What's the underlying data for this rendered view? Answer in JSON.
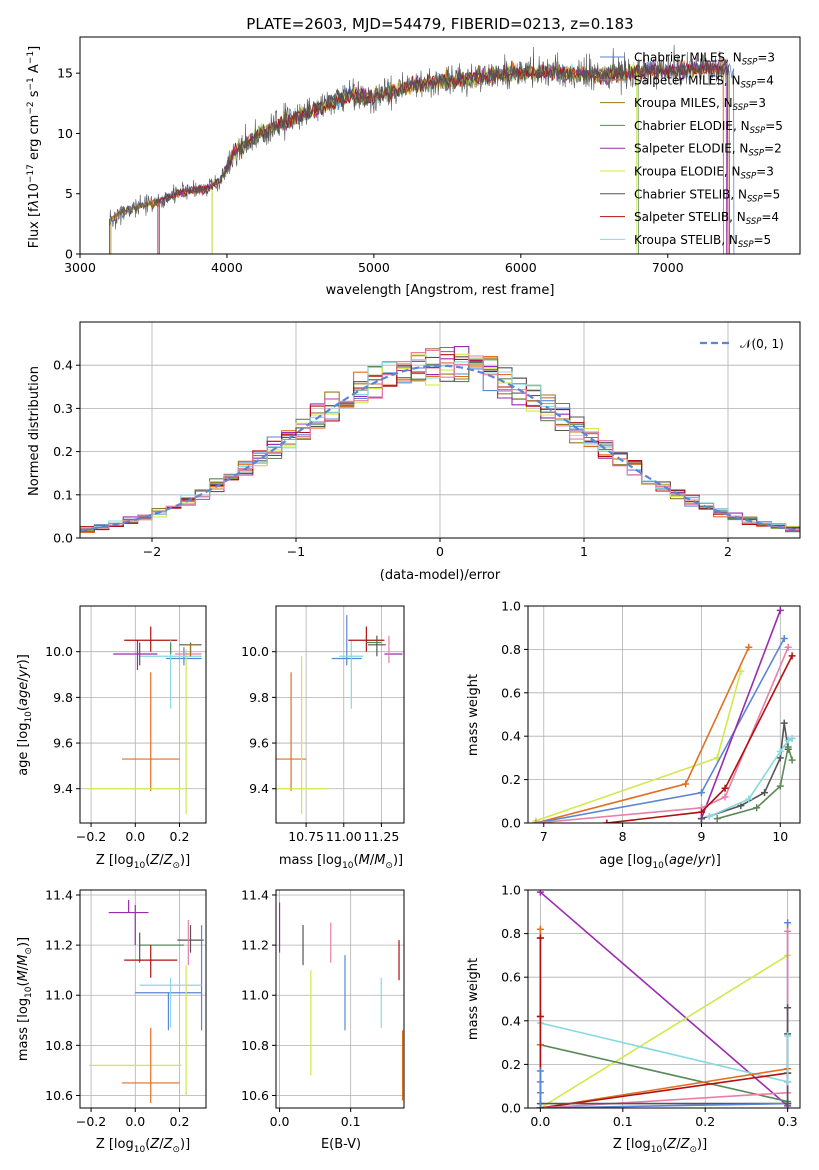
{
  "figure": {
    "title": "PLATE=2603, MJD=54479, FIBERID=0213, z=0.183"
  },
  "colors": {
    "chabrier_miles": "#5b86d6",
    "salpeter_miles": "#e07020",
    "kroupa_miles": "#9a7a20",
    "chabrier_elodie": "#5a8a5a",
    "salpeter_elodie": "#9b2ab0",
    "kroupa_elodie": "#d2e84a",
    "chabrier_stelib": "#555555",
    "salpeter_stelib": "#b01010",
    "kroupa_stelib": "#88d8e0",
    "pink": "#e87fa8",
    "gauss": "#5b86d6"
  },
  "chart_data": [
    {
      "id": "spectrum",
      "type": "line",
      "xlabel": "wavelength [Angstrom, rest frame]",
      "ylabel": "Flux [f_λ 10^-17 erg cm^-2 s^-1 A^-1]",
      "xlim": [
        3000,
        7900
      ],
      "ylim": [
        0,
        18
      ],
      "xticks": [
        "3000",
        "4000",
        "5000",
        "6000",
        "7000"
      ],
      "yticks": [
        "0",
        "5",
        "10",
        "15"
      ],
      "legend_position": "right",
      "legend": [
        {
          "imf": "Chabrier MILES",
          "n": "3",
          "color": "chabrier_miles"
        },
        {
          "imf": "Salpeter MILES",
          "n": "4",
          "color": "salpeter_miles"
        },
        {
          "imf": "Kroupa MILES",
          "n": "3",
          "color": "kroupa_miles"
        },
        {
          "imf": "Chabrier ELODIE",
          "n": "5",
          "color": "chabrier_elodie"
        },
        {
          "imf": "Salpeter ELODIE",
          "n": "2",
          "color": "salpeter_elodie"
        },
        {
          "imf": "Kroupa ELODIE",
          "n": "3",
          "color": "kroupa_elodie"
        },
        {
          "imf": "Chabrier STELIB",
          "n": "5",
          "color": "chabrier_stelib"
        },
        {
          "imf": "Salpeter STELIB",
          "n": "4",
          "color": "salpeter_stelib"
        },
        {
          "imf": "Kroupa STELIB",
          "n": "5",
          "color": "kroupa_stelib"
        }
      ],
      "continuum": [
        [
          3200,
          2.8
        ],
        [
          3350,
          3.8
        ],
        [
          3500,
          4.2
        ],
        [
          3700,
          5.2
        ],
        [
          3850,
          5.4
        ],
        [
          3950,
          6.0
        ],
        [
          4050,
          8.5
        ],
        [
          4200,
          9.8
        ],
        [
          4400,
          11.0
        ],
        [
          4600,
          12.0
        ],
        [
          4850,
          13.2
        ],
        [
          5000,
          13.0
        ],
        [
          5200,
          13.8
        ],
        [
          5400,
          14.2
        ],
        [
          5700,
          14.6
        ],
        [
          5900,
          15.0
        ],
        [
          6200,
          15.1
        ],
        [
          6500,
          14.8
        ],
        [
          6900,
          15.2
        ],
        [
          7300,
          15.4
        ],
        [
          7450,
          15.3
        ]
      ],
      "starts": [
        3200,
        3200,
        3210,
        3900,
        3540,
        3900,
        3200,
        3530,
        3540
      ],
      "stops": [
        7450,
        7380,
        7420,
        6800,
        7400,
        6790,
        7420,
        7410,
        7380
      ]
    },
    {
      "id": "residual_hist",
      "type": "line",
      "xlabel": "(data-model)/error",
      "ylabel": "Normed distribution",
      "xlim": [
        -2.5,
        2.5
      ],
      "ylim": [
        0,
        0.5
      ],
      "xticks": [
        "-2",
        "-1",
        "0",
        "1",
        "2"
      ],
      "yticks": [
        "0.0",
        "0.1",
        "0.2",
        "0.3",
        "0.4"
      ],
      "legend_position": "top-right",
      "gauss_label": "𝒩(0, 1)",
      "bin_width": 0.1
    },
    {
      "id": "z_age",
      "type": "scatter",
      "xlabel": "Z [log10(Z/Z☉)]",
      "ylabel": "age [log10(age/yr)]",
      "xlim": [
        -0.25,
        0.32
      ],
      "ylim": [
        9.25,
        10.2
      ],
      "xticks": [
        "-0.2",
        "0.0",
        "0.2"
      ],
      "yticks": [
        "9.4",
        "9.6",
        "9.8",
        "10.0"
      ],
      "points": [
        {
          "color": "chabrier_miles",
          "x": 0.22,
          "xerr": 0.08,
          "y": 9.97,
          "yerr": 0.03,
          "yerr_hi": 0.05
        },
        {
          "color": "salpeter_miles",
          "x": 0.07,
          "xerr": 0.13,
          "y": 9.53,
          "yerr": 0.14,
          "yerr_hi": 0.38
        },
        {
          "color": "kroupa_elodie",
          "x": 0.0,
          "xerr": 0.22,
          "y": 9.4,
          "yerr": 0.0,
          "yerr_hi": 0.0
        },
        {
          "color": "kroupa_elodie",
          "x": 0.23,
          "xerr": 0.0,
          "y": 9.61,
          "yerr": 0.32,
          "yerr_hi": 0.4
        },
        {
          "color": "salpeter_elodie",
          "x": 0.0,
          "xerr": 0.1,
          "y": 9.99,
          "yerr": 0.0,
          "yerr_hi": 0.0
        },
        {
          "color": "salpeter_elodie",
          "x": 0.01,
          "xerr": 0.0,
          "y": 10.0,
          "yerr": 0.08,
          "yerr_hi": 0.05
        },
        {
          "color": "chabrier_stelib",
          "x": 0.25,
          "xerr": 0.05,
          "y": 10.03,
          "yerr": 0.05,
          "yerr_hi": 0.01
        },
        {
          "color": "salpeter_stelib",
          "x": 0.07,
          "xerr": 0.12,
          "y": 10.05,
          "yerr": 0.05,
          "yerr_hi": 0.06
        },
        {
          "color": "kroupa_stelib",
          "x": 0.16,
          "xerr": 0.14,
          "y": 9.98,
          "yerr": 0.23,
          "yerr_hi": 0.07
        },
        {
          "color": "chabrier_elodie",
          "x": 0.16,
          "xerr": 0.0,
          "y": 10.04,
          "yerr": 0.05,
          "yerr_hi": 0.0
        },
        {
          "color": "chabrier_stelib",
          "x": 0.02,
          "xerr": 0.0,
          "y": 9.99,
          "yerr": 0.05,
          "yerr_hi": 0.05
        },
        {
          "color": "pink",
          "x": 0.24,
          "xerr": 0.06,
          "y": 9.99,
          "yerr": 0.0,
          "yerr_hi": 0.0
        },
        {
          "color": "kroupa_miles",
          "x": 0.25,
          "xerr": 0.03,
          "y": 10.03,
          "yerr": 0.05,
          "yerr_hi": 0.0
        }
      ]
    },
    {
      "id": "mass_age",
      "type": "scatter",
      "xlabel": "mass [log10(M/M☉)]",
      "ylabel": "",
      "xlim": [
        10.55,
        11.4
      ],
      "ylim": [
        9.25,
        10.2
      ],
      "xticks": [
        "10.75",
        "11.00",
        "11.25"
      ],
      "yticks": [
        "9.4",
        "9.6",
        "9.8",
        "10.0"
      ],
      "points": [
        {
          "color": "salpeter_miles",
          "x": 10.65,
          "xerr": 0.1,
          "y": 9.53,
          "yerr": 0.14,
          "yerr_hi": 0.38
        },
        {
          "color": "kroupa_elodie",
          "x": 10.72,
          "xerr": 0.17,
          "y": 9.4,
          "yerr": 0.11,
          "yerr_hi": 0.58
        },
        {
          "color": "chabrier_miles",
          "x": 11.02,
          "xerr": 0.1,
          "y": 9.97,
          "yerr": 0.03,
          "yerr_hi": 0.19
        },
        {
          "color": "kroupa_stelib",
          "x": 11.05,
          "xerr": 0.08,
          "y": 9.98,
          "yerr": 0.23,
          "yerr_hi": 0.07
        },
        {
          "color": "salpeter_stelib",
          "x": 11.15,
          "xerr": 0.12,
          "y": 10.05,
          "yerr": 0.05,
          "yerr_hi": 0.06
        },
        {
          "color": "chabrier_stelib",
          "x": 11.22,
          "xerr": 0.06,
          "y": 10.03,
          "yerr": 0.05,
          "yerr_hi": 0.04
        },
        {
          "color": "salpeter_elodie",
          "x": 11.33,
          "xerr": 0.06,
          "y": 9.99,
          "yerr": 0.0,
          "yerr_hi": 0.0
        },
        {
          "color": "pink",
          "x": 11.3,
          "xerr": 0.0,
          "y": 10.0,
          "yerr": 0.05,
          "yerr_hi": 0.07
        },
        {
          "color": "chabrier_elodie",
          "x": 11.2,
          "xerr": 0.05,
          "y": 10.04,
          "yerr": 0.0,
          "yerr_hi": 0.0
        }
      ]
    },
    {
      "id": "age_mass_weight",
      "type": "line",
      "xlabel": "age [log10(age/yr)]",
      "ylabel": "mass weight",
      "xlim": [
        6.8,
        10.25
      ],
      "ylim": [
        0,
        1.0
      ],
      "xticks": [
        "7",
        "8",
        "9",
        "10"
      ],
      "yticks": [
        "0.0",
        "0.2",
        "0.4",
        "0.6",
        "0.8",
        "1.0"
      ],
      "series": [
        {
          "color": "kroupa_elodie",
          "x": [
            6.9,
            9.2,
            9.5
          ],
          "y": [
            0.01,
            0.3,
            0.7
          ]
        },
        {
          "color": "salpeter_miles",
          "x": [
            6.9,
            8.8,
            9.6
          ],
          "y": [
            0.0,
            0.18,
            0.81
          ]
        },
        {
          "color": "chabrier_miles",
          "x": [
            6.9,
            9.0,
            10.05
          ],
          "y": [
            0.0,
            0.14,
            0.85
          ]
        },
        {
          "color": "salpeter_elodie",
          "x": [
            9.0,
            10.0
          ],
          "y": [
            0.02,
            0.98
          ]
        },
        {
          "color": "pink",
          "x": [
            6.9,
            9.0,
            9.3,
            10.1
          ],
          "y": [
            0.0,
            0.07,
            0.12,
            0.81
          ]
        },
        {
          "color": "salpeter_stelib",
          "x": [
            7.8,
            9.0,
            9.3,
            10.15
          ],
          "y": [
            0.0,
            0.05,
            0.16,
            0.77
          ]
        },
        {
          "color": "chabrier_stelib",
          "x": [
            9.0,
            9.5,
            9.8,
            10.0,
            10.05,
            10.1
          ],
          "y": [
            0.02,
            0.08,
            0.14,
            0.3,
            0.46,
            0.34
          ]
        },
        {
          "color": "kroupa_stelib",
          "x": [
            9.1,
            9.6,
            10.0,
            10.1,
            10.15
          ],
          "y": [
            0.03,
            0.11,
            0.33,
            0.38,
            0.39
          ]
        },
        {
          "color": "chabrier_elodie",
          "x": [
            9.2,
            9.7,
            10.0,
            10.1,
            10.15
          ],
          "y": [
            0.02,
            0.07,
            0.17,
            0.35,
            0.29
          ]
        }
      ]
    },
    {
      "id": "z_mass",
      "type": "scatter",
      "xlabel": "Z [log10(Z/Z☉)]",
      "ylabel": "mass [log10(M/M☉)]",
      "xlim": [
        -0.25,
        0.32
      ],
      "ylim": [
        10.55,
        11.42
      ],
      "xticks": [
        "-0.2",
        "0.0",
        "0.2"
      ],
      "yticks": [
        "10.6",
        "10.8",
        "11.0",
        "11.2",
        "11.4"
      ],
      "points": [
        {
          "color": "salpeter_elodie",
          "x": -0.03,
          "xerr": 0.09,
          "y": 11.33,
          "yerr": 0.0,
          "yerr_hi": 0.05
        },
        {
          "color": "salpeter_elodie",
          "x": 0.0,
          "xerr": 0.0,
          "y": 11.3,
          "yerr": 0.1,
          "yerr_hi": 0.06
        },
        {
          "color": "chabrier_elodie",
          "x": 0.12,
          "xerr": 0.1,
          "y": 11.2,
          "yerr": 0.0,
          "yerr_hi": 0.0
        },
        {
          "color": "chabrier_stelib",
          "x": 0.02,
          "xerr": 0.0,
          "y": 11.2,
          "yerr": 0.07,
          "yerr_hi": 0.05
        },
        {
          "color": "chabrier_stelib",
          "x": 0.25,
          "xerr": 0.06,
          "y": 11.22,
          "yerr": 0.05,
          "yerr_hi": 0.06
        },
        {
          "color": "salpeter_stelib",
          "x": 0.07,
          "xerr": 0.12,
          "y": 11.14,
          "yerr": 0.07,
          "yerr_hi": 0.06
        },
        {
          "color": "pink",
          "x": 0.24,
          "xerr": 0.0,
          "y": 11.2,
          "yerr": 0.08,
          "yerr_hi": 0.1
        },
        {
          "color": "chabrier_miles",
          "x": 0.15,
          "xerr": 0.15,
          "y": 11.01,
          "yerr": 0.15,
          "yerr_hi": 0.0
        },
        {
          "color": "chabrier_miles",
          "x": 0.3,
          "xerr": 0.0,
          "y": 11.06,
          "yerr": 0.2,
          "yerr_hi": 0.22
        },
        {
          "color": "kroupa_stelib",
          "x": 0.16,
          "xerr": 0.14,
          "y": 11.04,
          "yerr": 0.17,
          "yerr_hi": 0.03
        },
        {
          "color": "kroupa_elodie",
          "x": 0.23,
          "xerr": 0.0,
          "y": 10.9,
          "yerr": 0.3,
          "yerr_hi": 0.22
        },
        {
          "color": "kroupa_elodie",
          "x": 0.0,
          "xerr": 0.21,
          "y": 10.72,
          "yerr": 0.0,
          "yerr_hi": 0.0
        },
        {
          "color": "salpeter_miles",
          "x": 0.07,
          "xerr": 0.13,
          "y": 10.65,
          "yerr": 0.08,
          "yerr_hi": 0.22
        }
      ]
    },
    {
      "id": "ebv_mass",
      "type": "scatter",
      "xlabel": "E(B-V)",
      "ylabel": "",
      "xlim": [
        -0.005,
        0.175
      ],
      "ylim": [
        10.55,
        11.42
      ],
      "xticks": [
        "0.0",
        "0.1"
      ],
      "yticks": [
        "10.6",
        "10.8",
        "11.0",
        "11.2",
        "11.4"
      ],
      "points": [
        {
          "color": "salpeter_elodie",
          "x": 0.0,
          "y": 11.27,
          "yerr": 0.1
        },
        {
          "color": "chabrier_stelib",
          "x": 0.033,
          "y": 11.2,
          "yerr": 0.08
        },
        {
          "color": "pink",
          "x": 0.072,
          "y": 11.21,
          "yerr": 0.08
        },
        {
          "color": "chabrier_miles",
          "x": 0.092,
          "y": 11.01,
          "yerr": 0.15
        },
        {
          "color": "kroupa_elodie",
          "x": 0.044,
          "y": 10.89,
          "yerr": 0.21
        },
        {
          "color": "kroupa_stelib",
          "x": 0.143,
          "y": 10.97,
          "yerr": 0.1
        },
        {
          "color": "salpeter_stelib",
          "x": 0.168,
          "y": 11.14,
          "yerr": 0.08
        },
        {
          "color": "salpeter_miles",
          "x": 0.173,
          "y": 10.72,
          "yerr": 0.14
        }
      ]
    },
    {
      "id": "z_mass_weight",
      "type": "line",
      "xlabel": "Z [log10(Z/Z☉)]",
      "ylabel": "mass weight",
      "xlim": [
        -0.015,
        0.315
      ],
      "ylim": [
        0,
        1.0
      ],
      "xticks": [
        "0.0",
        "0.1",
        "0.2",
        "0.3"
      ],
      "yticks": [
        "0.0",
        "0.2",
        "0.4",
        "0.6",
        "0.8",
        "1.0"
      ],
      "series": [
        {
          "color": "salpeter_elodie",
          "x": [
            0.0,
            0.3
          ],
          "y": [
            0.99,
            0.01
          ]
        },
        {
          "color": "kroupa_elodie",
          "x": [
            0.0,
            0.3
          ],
          "y": [
            0.0,
            0.7
          ]
        },
        {
          "color": "kroupa_stelib",
          "x": [
            0.0,
            0.3
          ],
          "y": [
            0.39,
            0.12
          ]
        },
        {
          "color": "chabrier_elodie",
          "x": [
            0.0,
            0.3
          ],
          "y": [
            0.29,
            0.03
          ]
        },
        {
          "color": "salpeter_miles",
          "x": [
            0.0,
            0.3
          ],
          "y": [
            0.0,
            0.18
          ]
        },
        {
          "color": "salpeter_stelib",
          "x": [
            0.0,
            0.3
          ],
          "y": [
            0.0,
            0.16
          ]
        },
        {
          "color": "pink",
          "x": [
            0.0,
            0.3
          ],
          "y": [
            0.0,
            0.07
          ]
        },
        {
          "color": "chabrier_stelib",
          "x": [
            0.0,
            0.3
          ],
          "y": [
            0.02,
            0.02
          ]
        },
        {
          "color": "chabrier_miles",
          "x": [
            0.0,
            0.3
          ],
          "y": [
            0.0,
            0.02
          ]
        }
      ],
      "stacks": [
        {
          "color": "salpeter_miles",
          "x": 0.0,
          "y": [
            0.0,
            0.29,
            0.42,
            0.78,
            0.82
          ]
        },
        {
          "color": "salpeter_stelib",
          "x": 0.0,
          "y": [
            0.0,
            0.42,
            0.78
          ]
        },
        {
          "color": "chabrier_miles",
          "x": 0.0,
          "y": [
            0.0,
            0.07,
            0.12,
            0.17
          ]
        },
        {
          "color": "chabrier_miles",
          "x": 0.3,
          "y": [
            0.02,
            0.85
          ]
        },
        {
          "color": "pink",
          "x": 0.3,
          "y": [
            0.07,
            0.12,
            0.81
          ]
        },
        {
          "color": "chabrier_stelib",
          "x": 0.3,
          "y": [
            0.02,
            0.16,
            0.34,
            0.46
          ]
        },
        {
          "color": "kroupa_stelib",
          "x": 0.3,
          "y": [
            0.12,
            0.33
          ]
        }
      ]
    }
  ]
}
